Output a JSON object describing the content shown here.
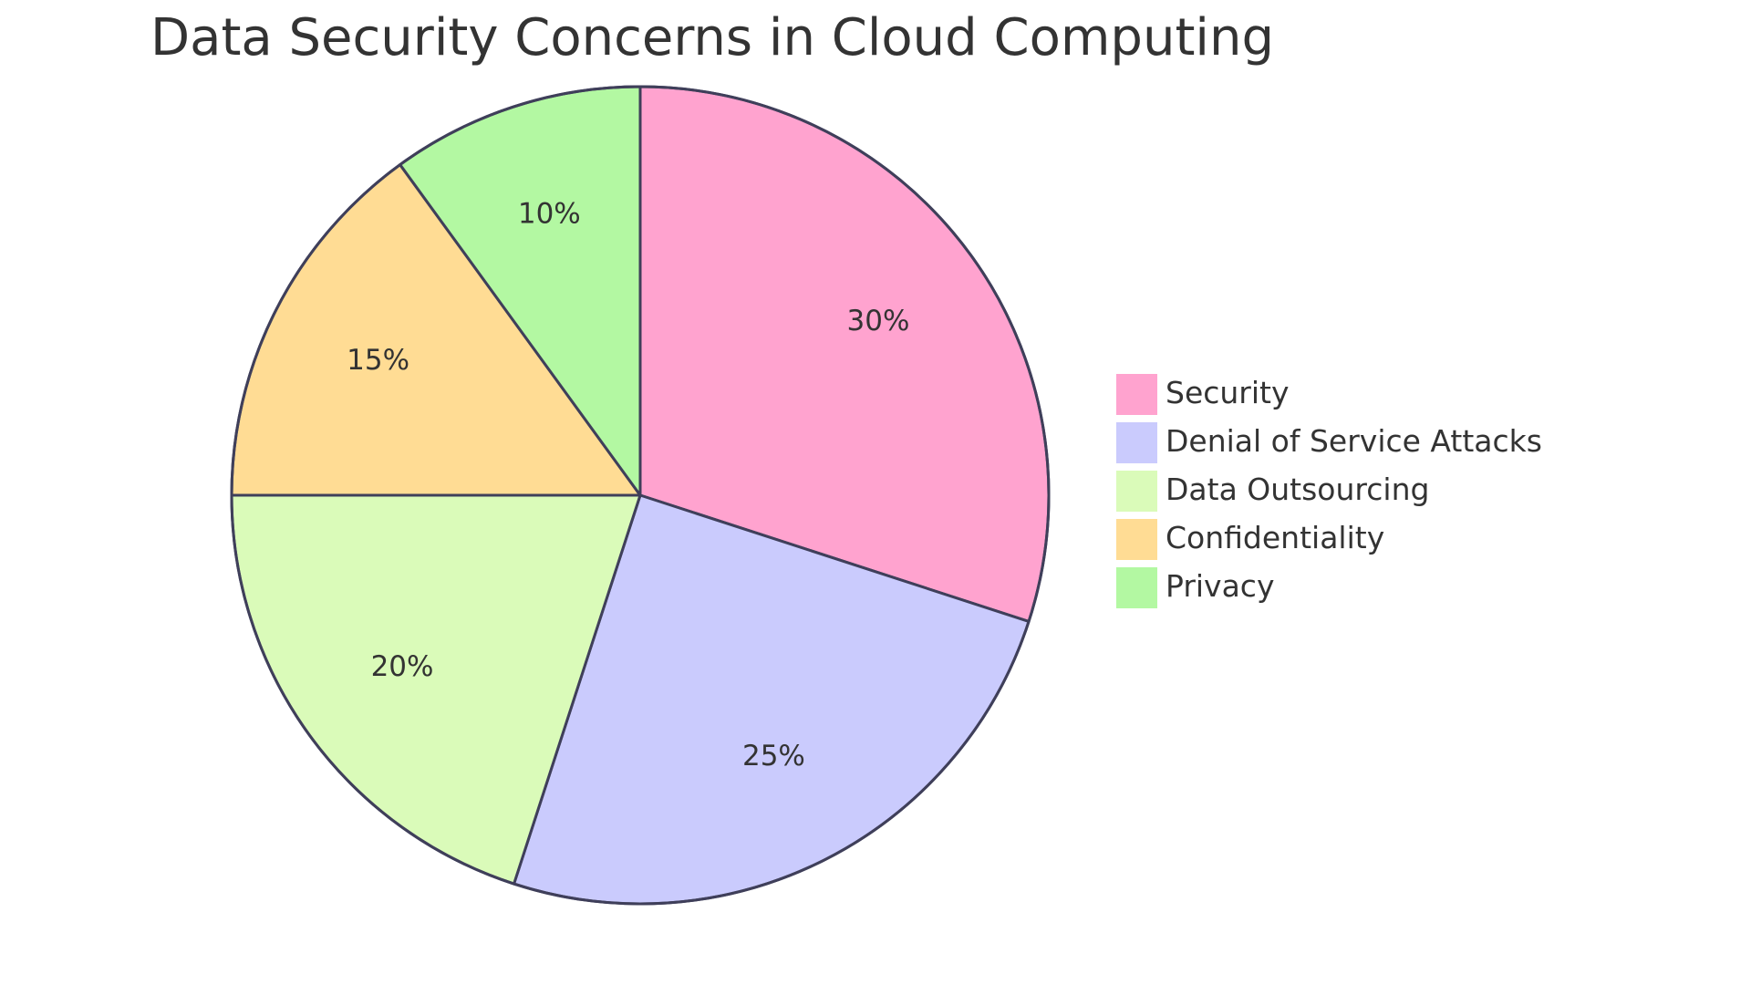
{
  "chart_data": {
    "type": "pie",
    "title": "Data Security Concerns in Cloud Computing",
    "legend_position": "right",
    "slices": [
      {
        "label": "Security",
        "value": 30,
        "display": "30%",
        "color": "#ffa3cf"
      },
      {
        "label": "Denial of Service Attacks",
        "value": 25,
        "display": "25%",
        "color": "#cacbfd"
      },
      {
        "label": "Data Outsourcing",
        "value": 20,
        "display": "20%",
        "color": "#dafbb9"
      },
      {
        "label": "Confidentiality",
        "value": 15,
        "display": "15%",
        "color": "#ffdc94"
      },
      {
        "label": "Privacy",
        "value": 10,
        "display": "10%",
        "color": "#b3f8a2"
      }
    ],
    "stroke_color": "#3f3f5a"
  }
}
